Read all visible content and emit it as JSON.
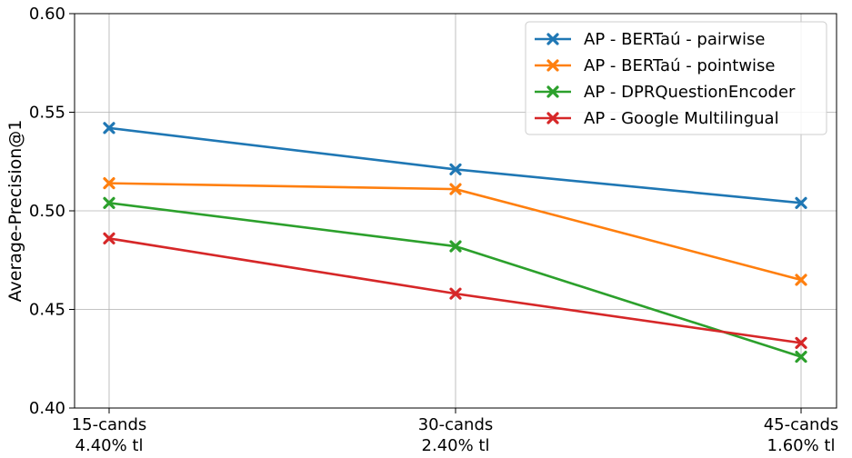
{
  "chart_data": {
    "type": "line",
    "title": "",
    "xlabel": "",
    "ylabel": "Average-Precision@1",
    "categories": [
      [
        "15-cands",
        "4.40% tl"
      ],
      [
        "30-cands",
        "2.40% tl"
      ],
      [
        "45-cands",
        "1.60% tl"
      ]
    ],
    "ylim": [
      0.4,
      0.6
    ],
    "yticks": [
      0.4,
      0.45,
      0.5,
      0.55,
      0.6
    ],
    "ytick_labels": [
      "0.40",
      "0.45",
      "0.50",
      "0.55",
      "0.60"
    ],
    "grid": true,
    "legend_position": "top-right",
    "series": [
      {
        "name": "AP - BERTaú - pairwise",
        "color": "#1f77b4",
        "values": [
          0.542,
          0.521,
          0.504
        ]
      },
      {
        "name": "AP - BERTaú - pointwise",
        "color": "#ff7f0e",
        "values": [
          0.514,
          0.511,
          0.465
        ]
      },
      {
        "name": "AP - DPRQuestionEncoder",
        "color": "#2ca02c",
        "values": [
          0.504,
          0.482,
          0.426
        ]
      },
      {
        "name": "AP - Google Multilingual",
        "color": "#d62728",
        "values": [
          0.486,
          0.458,
          0.433
        ]
      }
    ]
  }
}
